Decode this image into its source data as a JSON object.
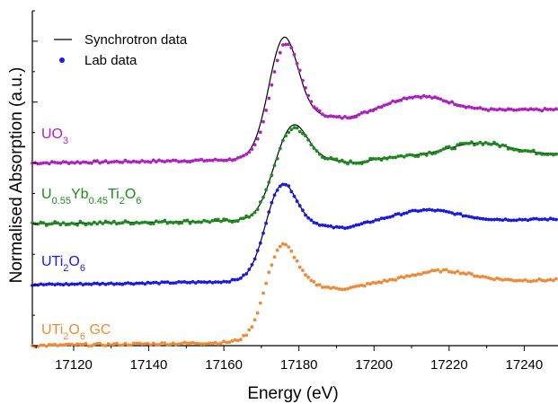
{
  "chart_data": {
    "type": "line",
    "xlabel": "Energy (eV)",
    "ylabel": "Normalised Absorption (a.u.)",
    "xlim": [
      17109,
      17249
    ],
    "x_ticks": [
      17120,
      17140,
      17160,
      17180,
      17200,
      17220,
      17240
    ],
    "x_tick_labels": [
      "17120",
      "17140",
      "17160",
      "17180",
      "17200",
      "17220",
      "17240"
    ],
    "ylim": [
      0,
      5.5
    ],
    "legend": {
      "position": "top-left",
      "entries": [
        {
          "label": "Synchrotron data",
          "style": "line",
          "color": "#000000"
        },
        {
          "label": "Lab data",
          "style": "marker",
          "color": "#1a1ae0"
        }
      ]
    },
    "series": [
      {
        "label": "UO3",
        "label_base": "UO",
        "label_sub": "3",
        "color": "#b020c0",
        "offset": 3.0,
        "edge": 17171,
        "peak_x": 17176.5,
        "peak": 1.95,
        "post": 0.75,
        "feature_x": 17212,
        "feature_amp": 0.25,
        "noise": 0.02,
        "ref_peak": 2.05,
        "ref_shift": -0.5
      },
      {
        "label": "U0.55Yb0.45Ti2O6",
        "label_parts": [
          {
            "t": "U",
            "sub": false
          },
          {
            "t": "0.55",
            "sub": true
          },
          {
            "t": "Yb",
            "sub": false
          },
          {
            "t": "0.45",
            "sub": true
          },
          {
            "t": "Ti",
            "sub": false
          },
          {
            "t": "2",
            "sub": true
          },
          {
            "t": "O",
            "sub": false
          },
          {
            "t": "6",
            "sub": true
          }
        ],
        "color": "#1e8a1e",
        "offset": 2.0,
        "edge": 17172,
        "peak_x": 17178.5,
        "peak": 1.55,
        "post": 1.02,
        "feature_x": 17228,
        "feature_amp": 0.2,
        "noise": 0.03,
        "ref_peak": 1.6,
        "ref_shift": 0.0
      },
      {
        "label": "UTi2O6",
        "label_parts": [
          {
            "t": "UTi",
            "sub": false
          },
          {
            "t": "2",
            "sub": true
          },
          {
            "t": "O",
            "sub": false
          },
          {
            "t": "6",
            "sub": true
          }
        ],
        "color": "#1a1ae0",
        "offset": 1.0,
        "edge": 17170,
        "peak_x": 17175.5,
        "peak": 1.65,
        "post": 0.95,
        "feature_x": 17214,
        "feature_amp": 0.18,
        "noise": 0.015,
        "ref_peak": 1.65,
        "ref_shift": 0.0
      },
      {
        "label": "UTi2O6 GC",
        "label_parts": [
          {
            "t": "UTi",
            "sub": false
          },
          {
            "t": "2",
            "sub": true
          },
          {
            "t": "O",
            "sub": false
          },
          {
            "t": "6",
            "sub": true
          },
          {
            "t": " GC",
            "sub": false
          }
        ],
        "color": "#ef8a34",
        "offset": 0.0,
        "edge": 17170,
        "peak_x": 17175.5,
        "peak": 1.65,
        "post": 0.95,
        "feature_x": 17218,
        "feature_amp": 0.18,
        "noise": 0.02,
        "ref_peak": null,
        "ref_shift": 0.0
      }
    ]
  }
}
